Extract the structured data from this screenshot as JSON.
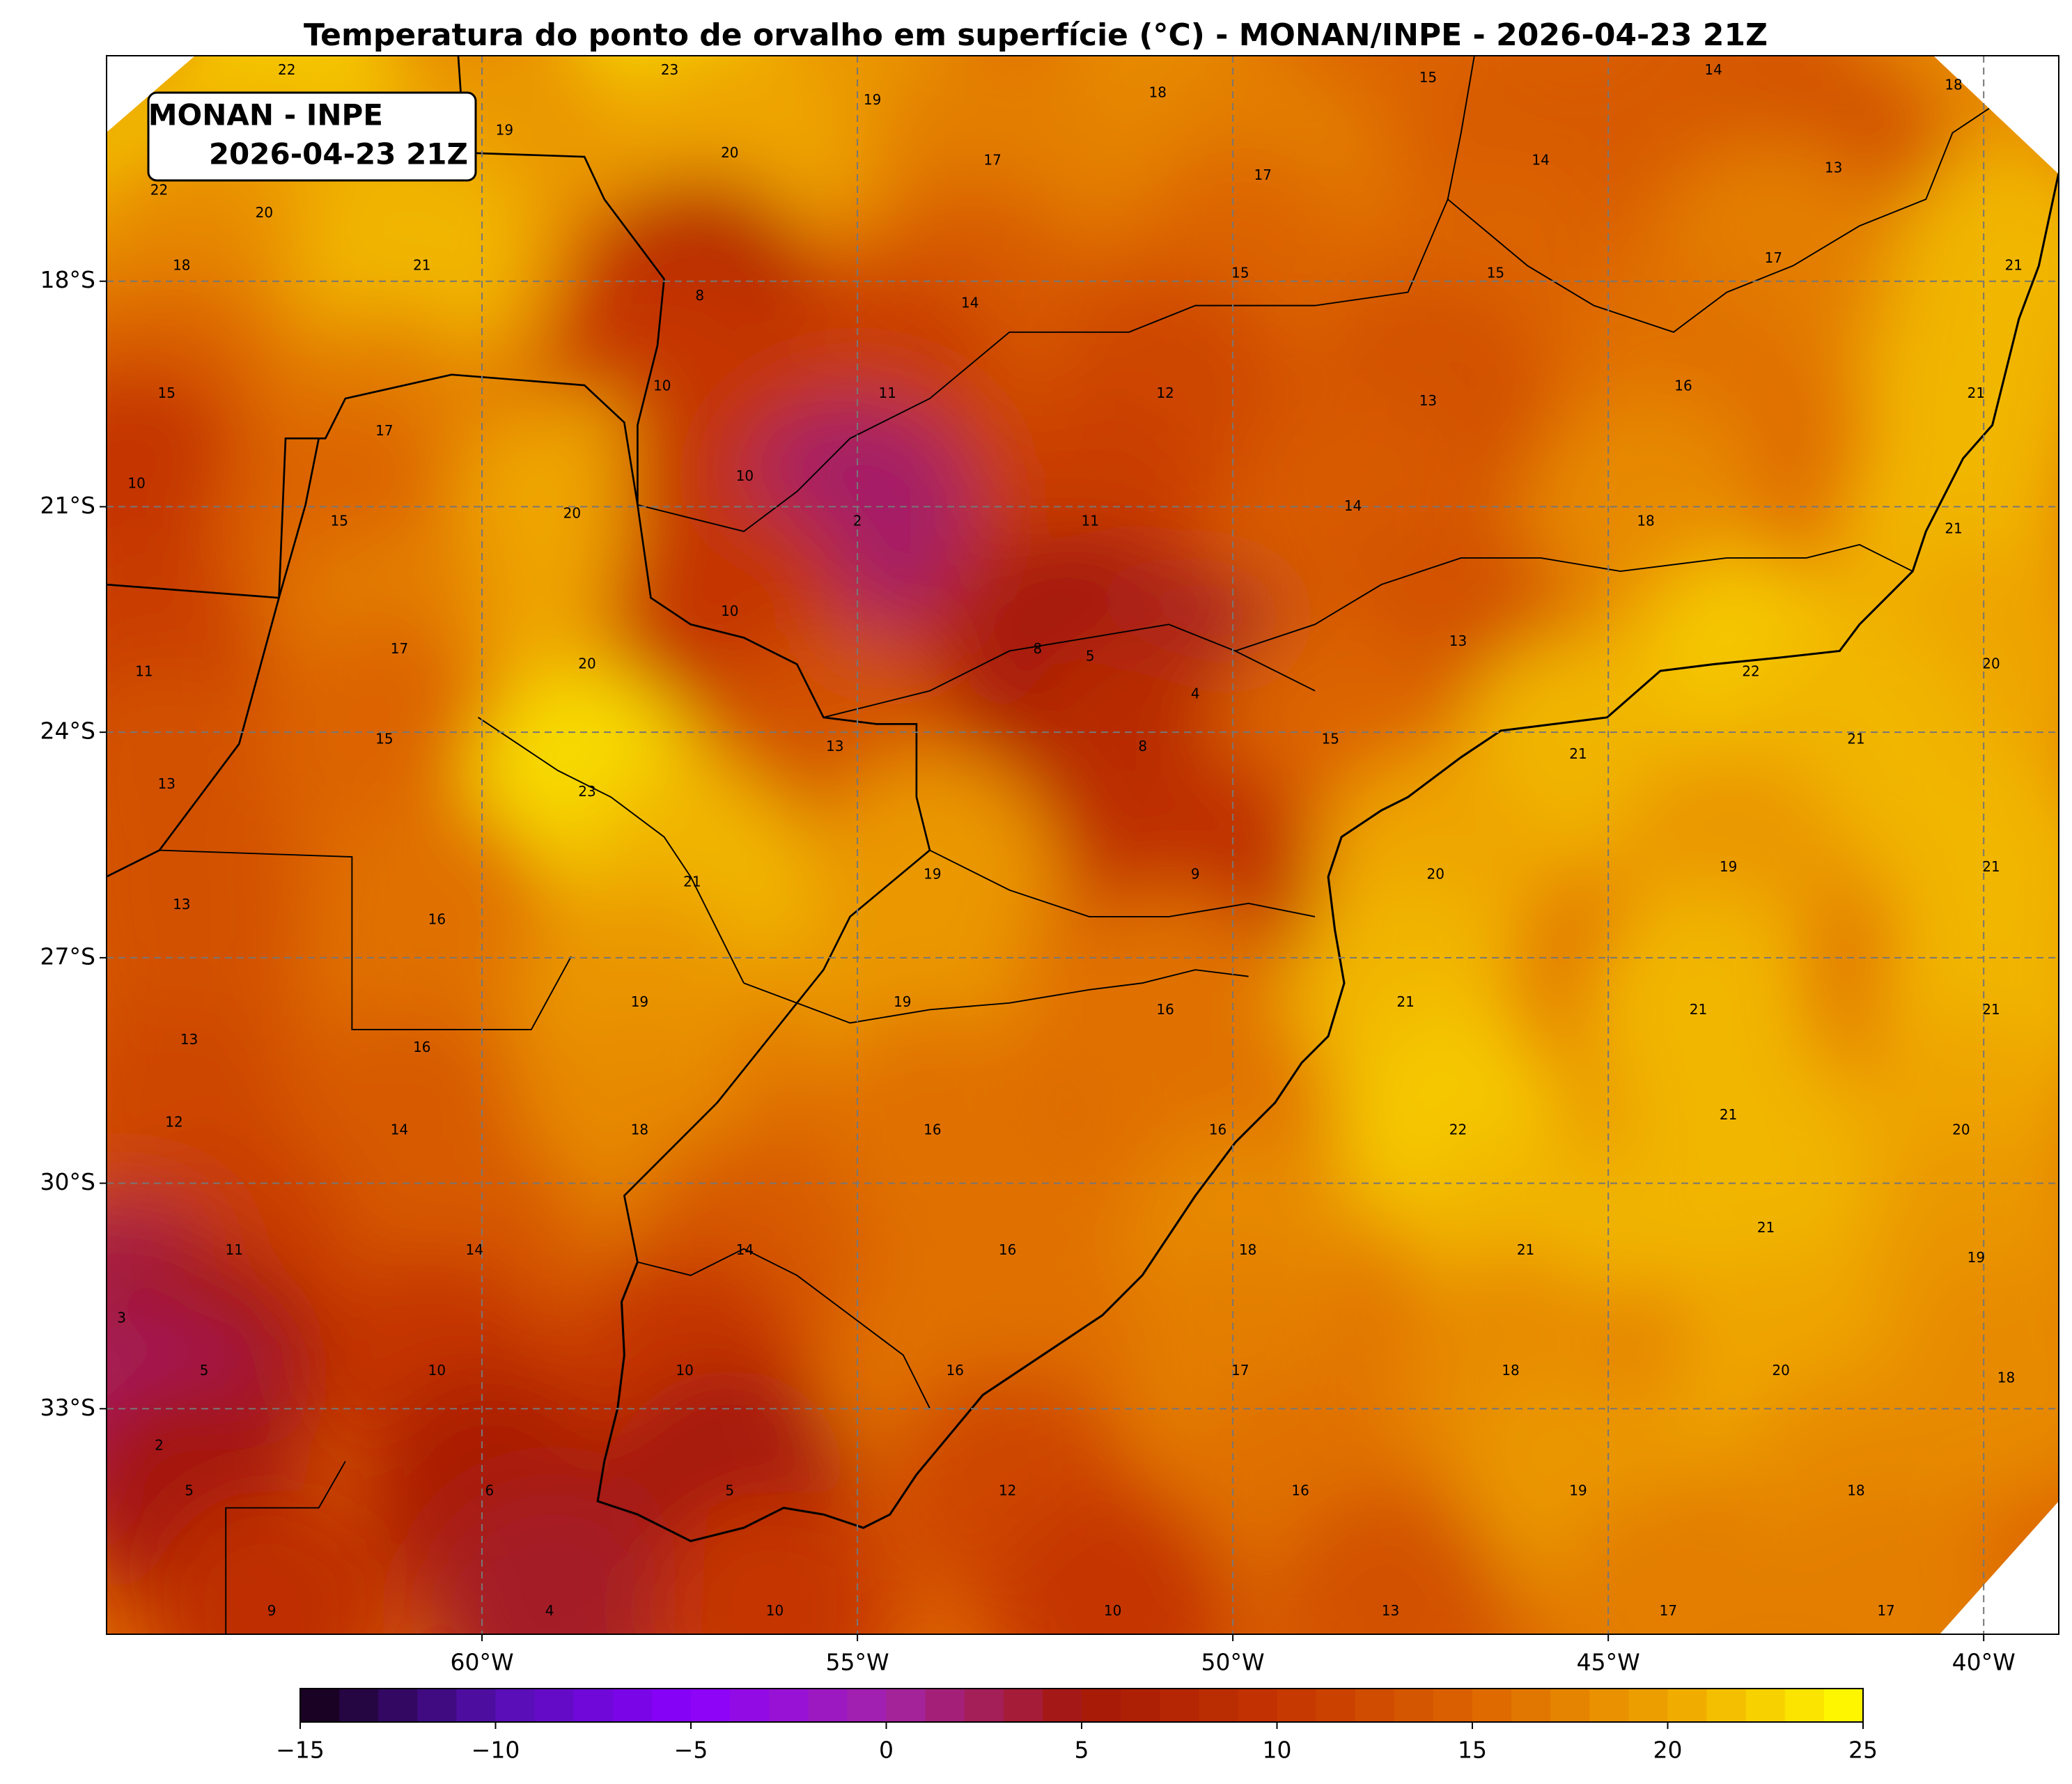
{
  "title": "Temperatura do ponto de orvalho em superfície (°C) - MONAN/INPE - 2026-04-23 21Z",
  "annotation": [
    "MONAN - INPE",
    "2026-04-23 21Z"
  ],
  "map": {
    "type": "contour-map",
    "xlim": [
      -65,
      -39
    ],
    "ylim": [
      -36,
      -15
    ],
    "xticks": [
      {
        "value": -60,
        "label": "60°W"
      },
      {
        "value": -55,
        "label": "55°W"
      },
      {
        "value": -50,
        "label": "50°W"
      },
      {
        "value": -45,
        "label": "45°W"
      },
      {
        "value": -40,
        "label": "40°W"
      }
    ],
    "yticks": [
      {
        "value": -18,
        "label": "18°S"
      },
      {
        "value": -21,
        "label": "21°S"
      },
      {
        "value": -24,
        "label": "24°S"
      },
      {
        "value": -27,
        "label": "27°S"
      },
      {
        "value": -30,
        "label": "30°S"
      },
      {
        "value": -33,
        "label": "33°S"
      }
    ],
    "grid": true,
    "points": [
      {
        "lon": -62.6,
        "lat": -15.2,
        "value": 22
      },
      {
        "lon": -57.5,
        "lat": -15.2,
        "value": 23
      },
      {
        "lon": -54.8,
        "lat": -15.6,
        "value": 19
      },
      {
        "lon": -51.0,
        "lat": -15.5,
        "value": 18
      },
      {
        "lon": -47.4,
        "lat": -15.3,
        "value": 15
      },
      {
        "lon": -43.6,
        "lat": -15.2,
        "value": 14
      },
      {
        "lon": -40.4,
        "lat": -15.4,
        "value": 18
      },
      {
        "lon": -64.3,
        "lat": -16.8,
        "value": 22
      },
      {
        "lon": -62.9,
        "lat": -17.1,
        "value": 20
      },
      {
        "lon": -59.7,
        "lat": -16.0,
        "value": 19
      },
      {
        "lon": -56.7,
        "lat": -16.3,
        "value": 20
      },
      {
        "lon": -53.2,
        "lat": -16.4,
        "value": 17
      },
      {
        "lon": -49.6,
        "lat": -16.6,
        "value": 17
      },
      {
        "lon": -45.9,
        "lat": -16.4,
        "value": 14
      },
      {
        "lon": -42.0,
        "lat": -16.5,
        "value": 13
      },
      {
        "lon": -64.0,
        "lat": -17.8,
        "value": 18
      },
      {
        "lon": -60.8,
        "lat": -17.8,
        "value": 21
      },
      {
        "lon": -57.1,
        "lat": -18.2,
        "value": 8
      },
      {
        "lon": -53.5,
        "lat": -18.3,
        "value": 14
      },
      {
        "lon": -49.9,
        "lat": -17.9,
        "value": 15
      },
      {
        "lon": -46.5,
        "lat": -17.9,
        "value": 15
      },
      {
        "lon": -42.8,
        "lat": -17.7,
        "value": 17
      },
      {
        "lon": -39.6,
        "lat": -17.8,
        "value": 21
      },
      {
        "lon": -64.2,
        "lat": -19.5,
        "value": 15
      },
      {
        "lon": -61.3,
        "lat": -20.0,
        "value": 17
      },
      {
        "lon": -57.6,
        "lat": -19.4,
        "value": 10
      },
      {
        "lon": -54.6,
        "lat": -19.5,
        "value": 11
      },
      {
        "lon": -50.9,
        "lat": -19.5,
        "value": 12
      },
      {
        "lon": -47.4,
        "lat": -19.6,
        "value": 13
      },
      {
        "lon": -44.0,
        "lat": -19.4,
        "value": 16
      },
      {
        "lon": -40.1,
        "lat": -19.5,
        "value": 21
      },
      {
        "lon": -64.6,
        "lat": -20.7,
        "value": 10
      },
      {
        "lon": -61.9,
        "lat": -21.2,
        "value": 15
      },
      {
        "lon": -58.8,
        "lat": -21.1,
        "value": 20
      },
      {
        "lon": -56.5,
        "lat": -20.6,
        "value": 10
      },
      {
        "lon": -55.0,
        "lat": -21.2,
        "value": 2
      },
      {
        "lon": -51.9,
        "lat": -21.2,
        "value": 11
      },
      {
        "lon": -48.4,
        "lat": -21.0,
        "value": 14
      },
      {
        "lon": -44.5,
        "lat": -21.2,
        "value": 18
      },
      {
        "lon": -40.4,
        "lat": -21.3,
        "value": 21
      },
      {
        "lon": -64.5,
        "lat": -23.2,
        "value": 11
      },
      {
        "lon": -61.1,
        "lat": -22.9,
        "value": 17
      },
      {
        "lon": -58.6,
        "lat": -23.1,
        "value": 20
      },
      {
        "lon": -56.7,
        "lat": -22.4,
        "value": 10
      },
      {
        "lon": -52.6,
        "lat": -22.9,
        "value": 8
      },
      {
        "lon": -51.9,
        "lat": -23.0,
        "value": 5
      },
      {
        "lon": -50.5,
        "lat": -23.5,
        "value": 4
      },
      {
        "lon": -47.0,
        "lat": -22.8,
        "value": 13
      },
      {
        "lon": -43.1,
        "lat": -23.2,
        "value": 22
      },
      {
        "lon": -39.9,
        "lat": -23.1,
        "value": 20
      },
      {
        "lon": -64.2,
        "lat": -24.7,
        "value": 13
      },
      {
        "lon": -61.3,
        "lat": -24.1,
        "value": 15
      },
      {
        "lon": -58.6,
        "lat": -24.8,
        "value": 23
      },
      {
        "lon": -55.3,
        "lat": -24.2,
        "value": 13
      },
      {
        "lon": -51.2,
        "lat": -24.2,
        "value": 8
      },
      {
        "lon": -48.7,
        "lat": -24.1,
        "value": 15
      },
      {
        "lon": -45.4,
        "lat": -24.3,
        "value": 21
      },
      {
        "lon": -41.7,
        "lat": -24.1,
        "value": 21
      },
      {
        "lon": -64.0,
        "lat": -26.3,
        "value": 13
      },
      {
        "lon": -60.6,
        "lat": -26.5,
        "value": 16
      },
      {
        "lon": -57.2,
        "lat": -26.0,
        "value": 21
      },
      {
        "lon": -54.0,
        "lat": -25.9,
        "value": 19
      },
      {
        "lon": -50.5,
        "lat": -25.9,
        "value": 9
      },
      {
        "lon": -47.3,
        "lat": -25.9,
        "value": 20
      },
      {
        "lon": -43.4,
        "lat": -25.8,
        "value": 19
      },
      {
        "lon": -39.9,
        "lat": -25.8,
        "value": 21
      },
      {
        "lon": -63.9,
        "lat": -28.1,
        "value": 13
      },
      {
        "lon": -60.8,
        "lat": -28.2,
        "value": 16
      },
      {
        "lon": -57.9,
        "lat": -27.6,
        "value": 19
      },
      {
        "lon": -54.4,
        "lat": -27.6,
        "value": 19
      },
      {
        "lon": -50.9,
        "lat": -27.7,
        "value": 16
      },
      {
        "lon": -47.7,
        "lat": -27.6,
        "value": 21
      },
      {
        "lon": -43.8,
        "lat": -27.7,
        "value": 21
      },
      {
        "lon": -39.9,
        "lat": -27.7,
        "value": 21
      },
      {
        "lon": -64.1,
        "lat": -29.2,
        "value": 12
      },
      {
        "lon": -61.1,
        "lat": -29.3,
        "value": 14
      },
      {
        "lon": -57.9,
        "lat": -29.3,
        "value": 18
      },
      {
        "lon": -54.0,
        "lat": -29.3,
        "value": 16
      },
      {
        "lon": -50.2,
        "lat": -29.3,
        "value": 16
      },
      {
        "lon": -47.0,
        "lat": -29.3,
        "value": 22
      },
      {
        "lon": -43.4,
        "lat": -29.1,
        "value": 21
      },
      {
        "lon": -40.3,
        "lat": -29.3,
        "value": 20
      },
      {
        "lon": -63.3,
        "lat": -30.9,
        "value": 11
      },
      {
        "lon": -60.1,
        "lat": -30.9,
        "value": 14
      },
      {
        "lon": -56.5,
        "lat": -30.9,
        "value": 14
      },
      {
        "lon": -53.0,
        "lat": -30.9,
        "value": 16
      },
      {
        "lon": -49.8,
        "lat": -30.9,
        "value": 18
      },
      {
        "lon": -46.1,
        "lat": -30.9,
        "value": 21
      },
      {
        "lon": -42.9,
        "lat": -30.6,
        "value": 21
      },
      {
        "lon": -40.1,
        "lat": -31.0,
        "value": 19
      },
      {
        "lon": -64.8,
        "lat": -31.8,
        "value": 3
      },
      {
        "lon": -63.7,
        "lat": -32.5,
        "value": 5
      },
      {
        "lon": -60.6,
        "lat": -32.5,
        "value": 10
      },
      {
        "lon": -57.3,
        "lat": -32.5,
        "value": 10
      },
      {
        "lon": -53.7,
        "lat": -32.5,
        "value": 16
      },
      {
        "lon": -49.9,
        "lat": -32.5,
        "value": 17
      },
      {
        "lon": -46.3,
        "lat": -32.5,
        "value": 18
      },
      {
        "lon": -42.7,
        "lat": -32.5,
        "value": 20
      },
      {
        "lon": -39.7,
        "lat": -32.6,
        "value": 18
      },
      {
        "lon": -64.3,
        "lat": -33.5,
        "value": 2
      },
      {
        "lon": -63.9,
        "lat": -34.1,
        "value": 5
      },
      {
        "lon": -59.9,
        "lat": -34.1,
        "value": 6
      },
      {
        "lon": -56.7,
        "lat": -34.1,
        "value": 5
      },
      {
        "lon": -53.0,
        "lat": -34.1,
        "value": 12
      },
      {
        "lon": -49.1,
        "lat": -34.1,
        "value": 16
      },
      {
        "lon": -45.4,
        "lat": -34.1,
        "value": 19
      },
      {
        "lon": -41.7,
        "lat": -34.1,
        "value": 18
      },
      {
        "lon": -62.8,
        "lat": -35.7,
        "value": 9
      },
      {
        "lon": -59.1,
        "lat": -35.7,
        "value": 4
      },
      {
        "lon": -56.1,
        "lat": -35.7,
        "value": 10
      },
      {
        "lon": -51.6,
        "lat": -35.7,
        "value": 10
      },
      {
        "lon": -47.9,
        "lat": -35.7,
        "value": 13
      },
      {
        "lon": -44.2,
        "lat": -35.7,
        "value": 17
      },
      {
        "lon": -41.3,
        "lat": -35.7,
        "value": 17
      }
    ]
  },
  "colorbar": {
    "clim": [
      -15,
      25
    ],
    "ticks": [
      {
        "value": -15,
        "label": "−15"
      },
      {
        "value": -10,
        "label": "−10"
      },
      {
        "value": -5,
        "label": "−5"
      },
      0,
      5,
      10,
      15,
      20,
      25
    ],
    "colors": [
      "#120014",
      "#5410b0",
      "#8a00ff",
      "#a424a8",
      "#a41808",
      "#c43400",
      "#dc6400",
      "#eea400",
      "#ffff00"
    ]
  }
}
